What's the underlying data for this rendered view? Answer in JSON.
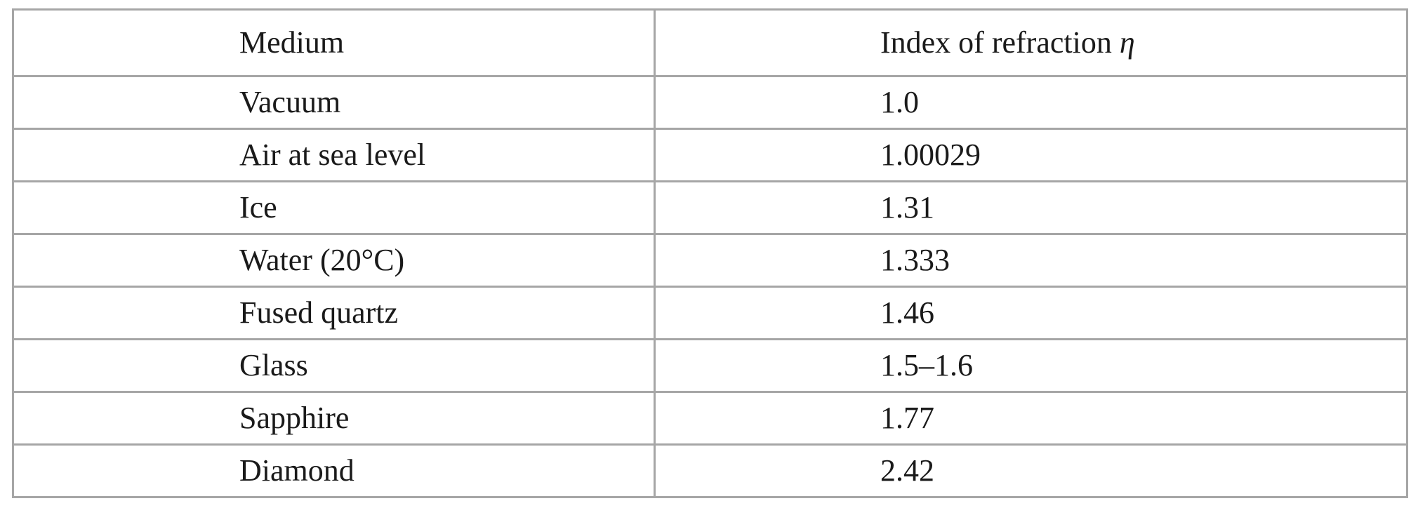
{
  "table": {
    "headers": {
      "medium": "Medium",
      "index": "Index of refraction",
      "index_symbol": "η"
    },
    "rows": [
      {
        "medium": "Vacuum",
        "index": "1.0"
      },
      {
        "medium": "Air at sea level",
        "index": "1.00029"
      },
      {
        "medium": "Ice",
        "index": "1.31"
      },
      {
        "medium": "Water (20°C)",
        "index": "1.333"
      },
      {
        "medium": "Fused quartz",
        "index": "1.46"
      },
      {
        "medium": "Glass",
        "index": "1.5–1.6"
      },
      {
        "medium": "Sapphire",
        "index": "1.77"
      },
      {
        "medium": "Diamond",
        "index": "2.42"
      }
    ]
  }
}
